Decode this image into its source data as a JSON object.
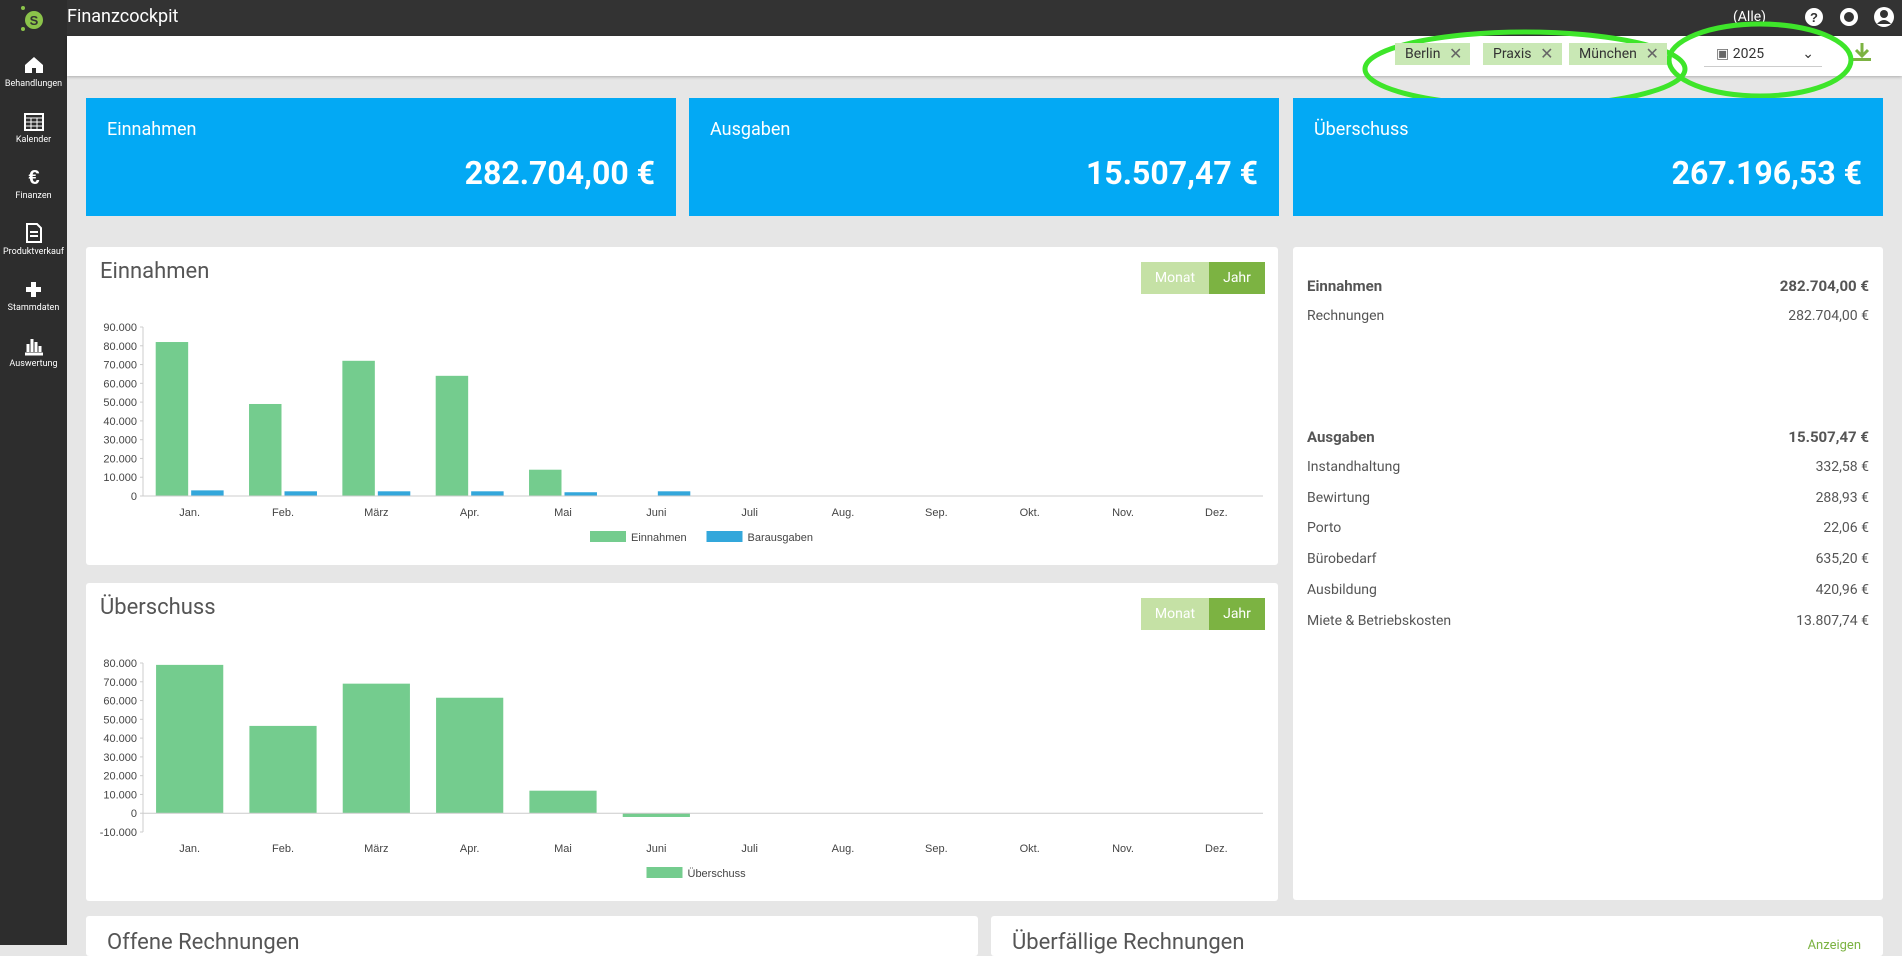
{
  "app": {
    "title": "Finanzcockpit",
    "location_filter": "(Alle)"
  },
  "sidebar": [
    "Behandlungen",
    "Kalender",
    "Finanzen",
    "Produktverkauf",
    "Stammdaten",
    "Auswertung"
  ],
  "filters": {
    "chips": [
      "Berlin",
      "Praxis",
      "München"
    ],
    "year": "2025"
  },
  "cards": [
    {
      "label": "Einnahmen",
      "value": "282.704,00 €"
    },
    {
      "label": "Ausgaben",
      "value": "15.507,47 €"
    },
    {
      "label": "Überschuss",
      "value": "267.196,53 €"
    }
  ],
  "chart_data": [
    {
      "type": "bar",
      "title": "Einnahmen",
      "toggle": [
        "Monat",
        "Jahr"
      ],
      "categories": [
        "Jan.",
        "Feb.",
        "März",
        "Apr.",
        "Mai",
        "Juni",
        "Juli",
        "Aug.",
        "Sep.",
        "Okt.",
        "Nov.",
        "Dez."
      ],
      "series": [
        {
          "name": "Einnahmen",
          "color": "#74cc8e",
          "values": [
            82000,
            49000,
            72000,
            64000,
            14000,
            0,
            0,
            0,
            0,
            0,
            0,
            0
          ]
        },
        {
          "name": "Barausgaben",
          "color": "#33a7db",
          "values": [
            3000,
            2500,
            2500,
            2500,
            2000,
            2500,
            0,
            0,
            0,
            0,
            0,
            0
          ]
        }
      ],
      "ylim": [
        0,
        90000
      ],
      "yticks": [
        0,
        {
          "value": 10000,
          "label": "10.000"
        },
        {
          "value": 20000,
          "label": "20.000"
        },
        {
          "value": 30000,
          "label": "30.000"
        },
        {
          "value": 40000,
          "label": "40.000"
        },
        {
          "value": 50000,
          "label": "50.000"
        },
        {
          "value": 60000,
          "label": "60.000"
        },
        {
          "value": 70000,
          "label": "70.000"
        },
        {
          "value": 80000,
          "label": "80.000"
        },
        {
          "value": 90000,
          "label": "90.000"
        }
      ],
      "grid": false
    },
    {
      "type": "bar",
      "title": "Überschuss",
      "toggle": [
        "Monat",
        "Jahr"
      ],
      "categories": [
        "Jan.",
        "Feb.",
        "März",
        "Apr.",
        "Mai",
        "Juni",
        "Juli",
        "Aug.",
        "Sep.",
        "Okt.",
        "Nov.",
        "Dez."
      ],
      "series": [
        {
          "name": "Überschuss",
          "color": "#74cc8e",
          "values": [
            79000,
            46500,
            69000,
            61500,
            12000,
            -2000,
            0,
            0,
            0,
            0,
            0,
            0
          ]
        }
      ],
      "ylim": [
        -10000,
        80000
      ],
      "yticks": [
        {
          "value": -10000,
          "label": "-10.000"
        },
        0,
        {
          "value": 10000,
          "label": "10.000"
        },
        {
          "value": 20000,
          "label": "20.000"
        },
        {
          "value": 30000,
          "label": "30.000"
        },
        {
          "value": 40000,
          "label": "40.000"
        },
        {
          "value": 50000,
          "label": "50.000"
        },
        {
          "value": 60000,
          "label": "60.000"
        },
        {
          "value": 70000,
          "label": "70.000"
        },
        {
          "value": 80000,
          "label": "80.000"
        }
      ],
      "grid": false
    }
  ],
  "summary": {
    "income": {
      "label": "Einnahmen",
      "total": "282.704,00 €",
      "items": [
        {
          "label": "Rechnungen",
          "value": "282.704,00 €"
        }
      ]
    },
    "expenses": {
      "label": "Ausgaben",
      "total": "15.507,47 €",
      "items": [
        {
          "label": "Instandhaltung",
          "value": "332,58 €"
        },
        {
          "label": "Bewirtung",
          "value": "288,93 €"
        },
        {
          "label": "Porto",
          "value": "22,06 €"
        },
        {
          "label": "Bürobedarf",
          "value": "635,20 €"
        },
        {
          "label": "Ausbildung",
          "value": "420,96 €"
        },
        {
          "label": "Miete & Betriebskosten",
          "value": "13.807,74 €"
        }
      ]
    }
  },
  "bottom": {
    "open_invoices": "Offene Rechnungen",
    "overdue_invoices": "Überfällige Rechnungen",
    "show": "Anzeigen"
  }
}
